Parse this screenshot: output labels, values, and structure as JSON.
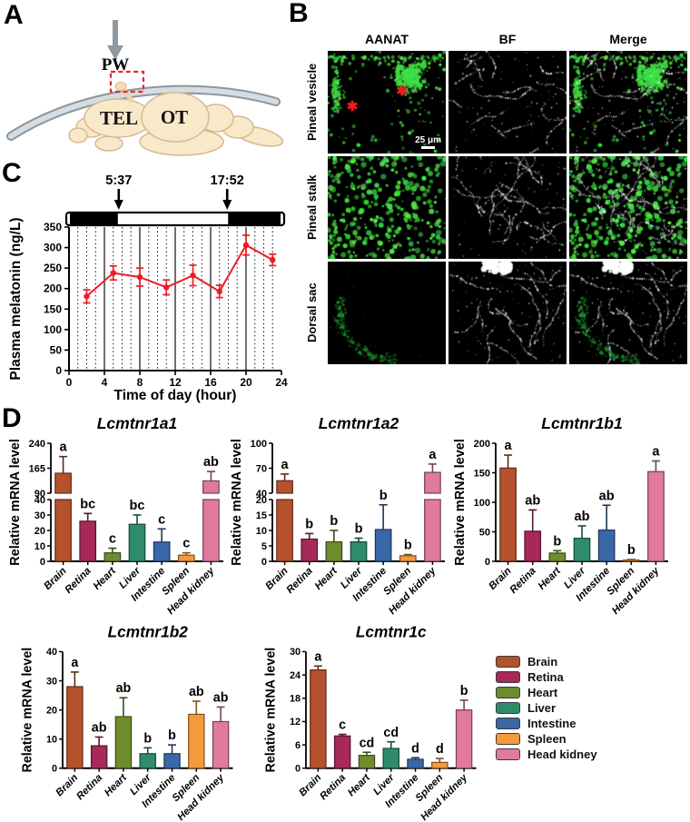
{
  "panels": {
    "a": "A",
    "b": "B",
    "c": "C",
    "d": "D"
  },
  "panel_a": {
    "pineal_window_label": "PW",
    "brain_region_labels": [
      "TEL",
      "OT"
    ],
    "skull_color": "#9aa3aa",
    "brain_color": "#f8e9cb",
    "box_color": "#e8272f"
  },
  "panel_b": {
    "column_headers": [
      "AANAT",
      "BF",
      "Merge"
    ],
    "row_labels": [
      "Pineal vesicle",
      "Pineal stalk",
      "Dorsal sac"
    ],
    "scale_bar_label": "25 μm",
    "asterisk_glyph": "✱",
    "signal_color": "#2fd14a",
    "brightfield_color": "#ffffff"
  },
  "tissue_colors": {
    "Brain": "#B5512D",
    "Retina": "#A62958",
    "Heart": "#6D8C2E",
    "Liver": "#2E8C6B",
    "Intestine": "#3A67A8",
    "Spleen": "#F6993B",
    "Head kidney": "#E07A9F"
  },
  "legend": {
    "items": [
      {
        "label": "Brain",
        "color": "#B5512D"
      },
      {
        "label": "Retina",
        "color": "#A62958"
      },
      {
        "label": "Heart",
        "color": "#6D8C2E"
      },
      {
        "label": "Liver",
        "color": "#2E8C6B"
      },
      {
        "label": "Intestine",
        "color": "#3A67A8"
      },
      {
        "label": "Spleen",
        "color": "#F6993B"
      },
      {
        "label": "Head kidney",
        "color": "#E07A9F"
      }
    ]
  },
  "chart_data": [
    {
      "id": "plasma-melatonin",
      "type": "line",
      "ylabel": "Plasma melatonin (ng/L)",
      "xlabel": "Time of day (hour)",
      "x": [
        2,
        5,
        8,
        11,
        14,
        17,
        20,
        23
      ],
      "y": [
        181,
        238,
        228,
        203,
        232,
        193,
        306,
        270
      ],
      "yerr": [
        16,
        17,
        22,
        18,
        25,
        15,
        24,
        14
      ],
      "ylim": [
        0,
        350
      ],
      "yticks": [
        0,
        50,
        100,
        150,
        200,
        250,
        300,
        350
      ],
      "xlim": [
        0,
        24
      ],
      "xticks": [
        0,
        4,
        8,
        12,
        16,
        20,
        24
      ],
      "grid": "dotted hourly, solid every 4 h",
      "annotations": [
        {
          "label": "5:37",
          "hour": 5.62
        },
        {
          "label": "17:52",
          "hour": 17.87
        }
      ],
      "photoperiod_dark_spans": [
        [
          0,
          5.62
        ],
        [
          17.87,
          24
        ]
      ],
      "line_color": "#ec1c24"
    },
    {
      "id": "lcmtnr1a1",
      "type": "bar",
      "title": "Lcmtnr1a1",
      "ylabel": "Relative mRNA level",
      "categories": [
        "Brain",
        "Retina",
        "Heart",
        "Liver",
        "Intestine",
        "Spleen",
        "Head kidney"
      ],
      "values": [
        150,
        26,
        5.5,
        24,
        12.5,
        4,
        127
      ],
      "errors": [
        50,
        5,
        3,
        6,
        8.5,
        1.5,
        28
      ],
      "letters": [
        "a",
        "bc",
        "c",
        "bc",
        "c",
        "c",
        "ab"
      ],
      "axis_lower": {
        "range": [
          0,
          40
        ],
        "ticks": [
          0,
          10,
          20,
          30,
          40
        ]
      },
      "axis_upper": {
        "range": [
          90,
          240
        ],
        "ticks": [
          90,
          165,
          240
        ]
      }
    },
    {
      "id": "lcmtnr1a2",
      "type": "bar",
      "title": "Lcmtnr1a2",
      "ylabel": "Relative mRNA level",
      "categories": [
        "Brain",
        "Retina",
        "Heart",
        "Liver",
        "Intestine",
        "Spleen",
        "Head kidney"
      ],
      "values": [
        55,
        7.2,
        6.3,
        6.3,
        10.3,
        1.8,
        65
      ],
      "errors": [
        8,
        1.8,
        3.7,
        1.2,
        8,
        0.4,
        10
      ],
      "letters": [
        "a",
        "b",
        "b",
        "b",
        "b",
        "b",
        "a"
      ],
      "axis_lower": {
        "range": [
          0,
          20
        ],
        "ticks": [
          0,
          5,
          10,
          15,
          20
        ]
      },
      "axis_upper": {
        "range": [
          40,
          100
        ],
        "ticks": [
          40,
          70,
          100
        ]
      }
    },
    {
      "id": "lcmtnr1b1",
      "type": "bar",
      "title": "Lcmtnr1b1",
      "ylabel": "Relative mRNA level",
      "categories": [
        "Brain",
        "Retina",
        "Heart",
        "Liver",
        "Intestine",
        "Spleen",
        "Head kidney"
      ],
      "values": [
        158,
        51,
        14,
        39,
        53,
        2,
        152
      ],
      "errors": [
        22,
        36,
        4,
        21,
        42,
        1,
        18
      ],
      "letters": [
        "a",
        "ab",
        "b",
        "ab",
        "ab",
        "b",
        "a"
      ],
      "axis_lower": {
        "range": [
          0,
          200
        ],
        "ticks": [
          0,
          50,
          100,
          150,
          200
        ]
      }
    },
    {
      "id": "lcmtnr1b2",
      "type": "bar",
      "title": "Lcmtnr1b2",
      "ylabel": "Relative mRNA level",
      "categories": [
        "Brain",
        "Retina",
        "Heart",
        "Liver",
        "Intestine",
        "Spleen",
        "Head kidney"
      ],
      "values": [
        28,
        7.7,
        17.7,
        5,
        5,
        18.5,
        16
      ],
      "errors": [
        5,
        3,
        6.5,
        2,
        3,
        4.5,
        5
      ],
      "letters": [
        "a",
        "ab",
        "ab",
        "b",
        "b",
        "ab",
        "ab"
      ],
      "axis_lower": {
        "range": [
          0,
          40
        ],
        "ticks": [
          0,
          10,
          20,
          30,
          40
        ]
      }
    },
    {
      "id": "lcmtnr1c",
      "type": "bar",
      "title": "Lcmtnr1c",
      "ylabel": "Relative mRNA level",
      "categories": [
        "Brain",
        "Retina",
        "Heart",
        "Liver",
        "Intestine",
        "Spleen",
        "Head kidney"
      ],
      "values": [
        25.3,
        8.3,
        3.3,
        5.1,
        2.3,
        1.5,
        15
      ],
      "errors": [
        1,
        0.4,
        0.8,
        1.7,
        0.4,
        1,
        2.5
      ],
      "letters": [
        "a",
        "c",
        "cd",
        "cd",
        "d",
        "d",
        "b"
      ],
      "axis_lower": {
        "range": [
          0,
          30
        ],
        "ticks": [
          0,
          6,
          12,
          18,
          24,
          30
        ]
      }
    }
  ]
}
